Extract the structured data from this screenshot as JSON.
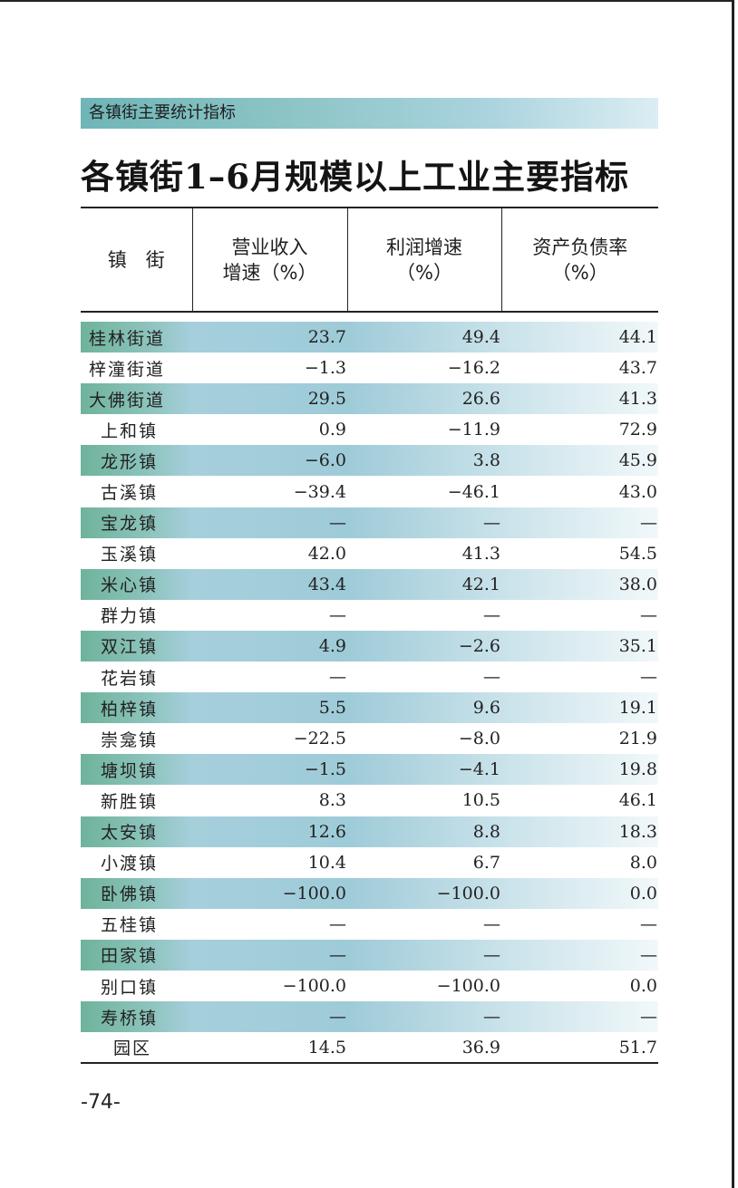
{
  "section_header": "各镇街主要统计指标",
  "title": "各镇街1–6月规模以上工业主要指标",
  "table": {
    "columns": [
      {
        "line1": "镇　街",
        "line2": ""
      },
      {
        "line1": "营业收入",
        "line2": "增速（%）"
      },
      {
        "line1": "利润增速",
        "line2": "（%）"
      },
      {
        "line1": "资产负债率",
        "line2": "（%）"
      }
    ],
    "rows": [
      {
        "name": "桂林街道",
        "revenue_growth": "23.7",
        "profit_growth": "49.4",
        "debt_ratio": "44.1"
      },
      {
        "name": "梓潼街道",
        "revenue_growth": "−1.3",
        "profit_growth": "−16.2",
        "debt_ratio": "43.7"
      },
      {
        "name": "大佛街道",
        "revenue_growth": "29.5",
        "profit_growth": "26.6",
        "debt_ratio": "41.3"
      },
      {
        "name": "上和镇",
        "revenue_growth": "0.9",
        "profit_growth": "−11.9",
        "debt_ratio": "72.9"
      },
      {
        "name": "龙形镇",
        "revenue_growth": "−6.0",
        "profit_growth": "3.8",
        "debt_ratio": "45.9"
      },
      {
        "name": "古溪镇",
        "revenue_growth": "−39.4",
        "profit_growth": "−46.1",
        "debt_ratio": "43.0"
      },
      {
        "name": "宝龙镇",
        "revenue_growth": "—",
        "profit_growth": "—",
        "debt_ratio": "—"
      },
      {
        "name": "玉溪镇",
        "revenue_growth": "42.0",
        "profit_growth": "41.3",
        "debt_ratio": "54.5"
      },
      {
        "name": "米心镇",
        "revenue_growth": "43.4",
        "profit_growth": "42.1",
        "debt_ratio": "38.0"
      },
      {
        "name": "群力镇",
        "revenue_growth": "—",
        "profit_growth": "—",
        "debt_ratio": "—"
      },
      {
        "name": "双江镇",
        "revenue_growth": "4.9",
        "profit_growth": "−2.6",
        "debt_ratio": "35.1"
      },
      {
        "name": "花岩镇",
        "revenue_growth": "—",
        "profit_growth": "—",
        "debt_ratio": "—"
      },
      {
        "name": "柏梓镇",
        "revenue_growth": "5.5",
        "profit_growth": "9.6",
        "debt_ratio": "19.1"
      },
      {
        "name": "崇龛镇",
        "revenue_growth": "−22.5",
        "profit_growth": "−8.0",
        "debt_ratio": "21.9"
      },
      {
        "name": "塘坝镇",
        "revenue_growth": "−1.5",
        "profit_growth": "−4.1",
        "debt_ratio": "19.8"
      },
      {
        "name": "新胜镇",
        "revenue_growth": "8.3",
        "profit_growth": "10.5",
        "debt_ratio": "46.1"
      },
      {
        "name": "太安镇",
        "revenue_growth": "12.6",
        "profit_growth": "8.8",
        "debt_ratio": "18.3"
      },
      {
        "name": "小渡镇",
        "revenue_growth": "10.4",
        "profit_growth": "6.7",
        "debt_ratio": "8.0"
      },
      {
        "name": "卧佛镇",
        "revenue_growth": "−100.0",
        "profit_growth": "−100.0",
        "debt_ratio": "0.0"
      },
      {
        "name": "五桂镇",
        "revenue_growth": "—",
        "profit_growth": "—",
        "debt_ratio": "—"
      },
      {
        "name": "田家镇",
        "revenue_growth": "—",
        "profit_growth": "—",
        "debt_ratio": "—"
      },
      {
        "name": "别口镇",
        "revenue_growth": "−100.0",
        "profit_growth": "−100.0",
        "debt_ratio": "0.0"
      },
      {
        "name": "寿桥镇",
        "revenue_growth": "—",
        "profit_growth": "—",
        "debt_ratio": "—"
      },
      {
        "name": "园区",
        "revenue_growth": "14.5",
        "profit_growth": "36.9",
        "debt_ratio": "51.7"
      }
    ]
  },
  "page_number": "-74-"
}
